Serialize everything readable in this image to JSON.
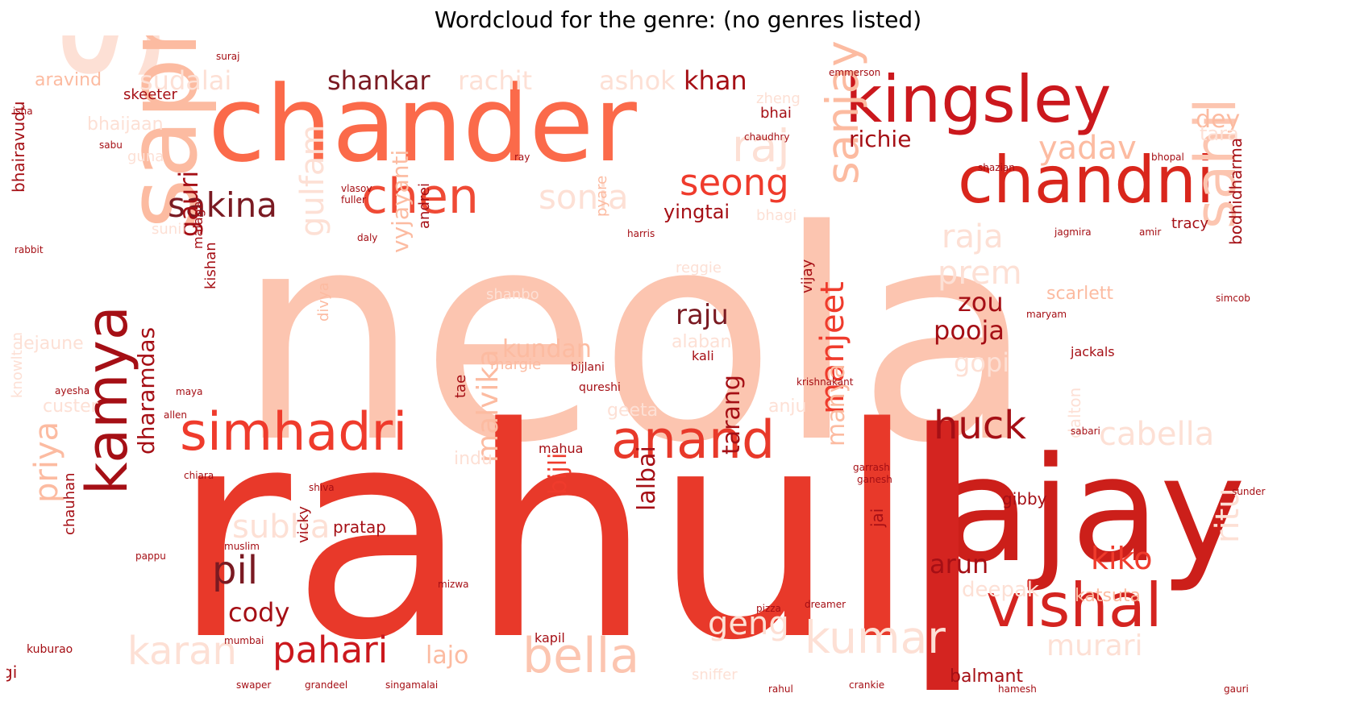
{
  "title": "Wordcloud for the genre: (no genres listed)",
  "colors": {
    "palette": [
      "#fcbba1",
      "#fc9272",
      "#fb6a4a",
      "#ef3b2c",
      "#cb181d",
      "#a50f15",
      "#67000d"
    ]
  },
  "words": [
    {
      "text": "neola",
      "weight": 1.0,
      "color": "#fcc5b0"
    },
    {
      "text": "rahul",
      "weight": 0.97,
      "color": "#e8392a"
    },
    {
      "text": "ajay",
      "weight": 0.63,
      "color": "#cc1f1a"
    },
    {
      "text": "l",
      "weight": 0.65,
      "color": "#d42420"
    },
    {
      "text": "chander",
      "weight": 0.5,
      "color": "#fb6a4a"
    },
    {
      "text": "singh",
      "weight": 0.5,
      "color": "#fde0d5"
    },
    {
      "text": "sapna",
      "weight": 0.33,
      "color": "#fcbba1"
    },
    {
      "text": "kingsley",
      "weight": 0.33,
      "color": "#cb181d"
    },
    {
      "text": "chandni",
      "weight": 0.32,
      "color": "#d9261c"
    },
    {
      "text": "sahil",
      "weight": 0.26,
      "color": "#fcc5b0"
    },
    {
      "text": "vishal",
      "weight": 0.26,
      "color": "#d42420"
    },
    {
      "text": "anand",
      "weight": 0.25,
      "color": "#e8392a"
    },
    {
      "text": "simhadri",
      "weight": 0.25,
      "color": "#ef3b2c"
    },
    {
      "text": "kamya",
      "weight": 0.24,
      "color": "#a50f15"
    },
    {
      "text": "bella",
      "weight": 0.23,
      "color": "#fcc5b0"
    },
    {
      "text": "chen",
      "weight": 0.23,
      "color": "#ef4a35"
    },
    {
      "text": "sanjay",
      "weight": 0.22,
      "color": "#fcbba1"
    },
    {
      "text": "kumar",
      "weight": 0.2,
      "color": "#fde0d5"
    },
    {
      "text": "raj",
      "weight": 0.2,
      "color": "#fde0d5"
    },
    {
      "text": "sakina",
      "weight": 0.19,
      "color": "#7a1a22"
    },
    {
      "text": "seong",
      "weight": 0.18,
      "color": "#ef3b2c"
    },
    {
      "text": "sonia",
      "weight": 0.17,
      "color": "#fde0d5"
    },
    {
      "text": "karan",
      "weight": 0.18,
      "color": "#fde0d5"
    },
    {
      "text": "huck",
      "weight": 0.18,
      "color": "#a50f15"
    },
    {
      "text": "pahari",
      "weight": 0.18,
      "color": "#cb181d"
    },
    {
      "text": "gulfam",
      "weight": 0.16,
      "color": "#fde0d5"
    },
    {
      "text": "manjeet",
      "weight": 0.17,
      "color": "#ef3b2c"
    },
    {
      "text": "raja",
      "weight": 0.16,
      "color": "#fde0d5"
    },
    {
      "text": "prem",
      "weight": 0.16,
      "color": "#fde0d5"
    },
    {
      "text": "pil",
      "weight": 0.18,
      "color": "#7a1a22"
    },
    {
      "text": "priya",
      "weight": 0.16,
      "color": "#fcbba1"
    },
    {
      "text": "subha",
      "weight": 0.15,
      "color": "#fde0d5"
    },
    {
      "text": "cabella",
      "weight": 0.15,
      "color": "#fde0d5"
    },
    {
      "text": "yadav",
      "weight": 0.15,
      "color": "#fcbba1"
    },
    {
      "text": "gauri",
      "weight": 0.14,
      "color": "#a50f15"
    },
    {
      "text": "ritu",
      "weight": 0.15,
      "color": "#fde0d5"
    },
    {
      "text": "kiko",
      "weight": 0.14,
      "color": "#ef3b2c"
    },
    {
      "text": "geng",
      "weight": 0.14,
      "color": "#fde0d5"
    },
    {
      "text": "malvika",
      "weight": 0.14,
      "color": "#fcbba1"
    },
    {
      "text": "murari",
      "weight": 0.13,
      "color": "#fde0d5"
    },
    {
      "text": "sudalai",
      "weight": 0.12,
      "color": "#fde0d5"
    },
    {
      "text": "shankar",
      "weight": 0.12,
      "color": "#7a1a22"
    },
    {
      "text": "rachit",
      "weight": 0.12,
      "color": "#fde0d5"
    },
    {
      "text": "ashok",
      "weight": 0.12,
      "color": "#fde0d5"
    },
    {
      "text": "khan",
      "weight": 0.12,
      "color": "#a50f15"
    },
    {
      "text": "richie",
      "weight": 0.11,
      "color": "#a50f15"
    },
    {
      "text": "dey",
      "weight": 0.11,
      "color": "#fcbba1"
    },
    {
      "text": "tara",
      "weight": 0.09,
      "color": "#fde0d5"
    },
    {
      "text": "raju",
      "weight": 0.12,
      "color": "#7a1a22"
    },
    {
      "text": "pooja",
      "weight": 0.11,
      "color": "#a50f15"
    },
    {
      "text": "zou",
      "weight": 0.11,
      "color": "#a50f15"
    },
    {
      "text": "kundan",
      "weight": 0.11,
      "color": "#fcbba1"
    },
    {
      "text": "gopi",
      "weight": 0.11,
      "color": "#fde0d5"
    },
    {
      "text": "cody",
      "weight": 0.11,
      "color": "#a50f15"
    },
    {
      "text": "arun",
      "weight": 0.11,
      "color": "#a50f15"
    },
    {
      "text": "tarang",
      "weight": 0.11,
      "color": "#a50f15"
    },
    {
      "text": "lajo",
      "weight": 0.1,
      "color": "#fcbba1"
    },
    {
      "text": "dharamdas",
      "weight": 0.1,
      "color": "#a50f15"
    },
    {
      "text": "bijli",
      "weight": 0.1,
      "color": "#ef3b2c"
    },
    {
      "text": "lalbai",
      "weight": 0.1,
      "color": "#a50f15"
    },
    {
      "text": "vyjayanti",
      "weight": 0.1,
      "color": "#fcbba1"
    },
    {
      "text": "manya",
      "weight": 0.1,
      "color": "#fcbba1"
    },
    {
      "text": "scarlett",
      "weight": 0.08,
      "color": "#fcbba1"
    },
    {
      "text": "deepak",
      "weight": 0.09,
      "color": "#fde0d5"
    },
    {
      "text": "katsuta",
      "weight": 0.08,
      "color": "#fcbba1"
    },
    {
      "text": "bodhidharma",
      "weight": 0.08,
      "color": "#a50f15"
    },
    {
      "text": "balmant",
      "weight": 0.08,
      "color": "#a50f15"
    },
    {
      "text": "sniffer",
      "weight": 0.07,
      "color": "#fde0d5"
    },
    {
      "text": "aravind",
      "weight": 0.07,
      "color": "#fcbba1"
    },
    {
      "text": "bhaijaan",
      "weight": 0.07,
      "color": "#fde0d5"
    },
    {
      "text": "bhairavudu",
      "weight": 0.07,
      "color": "#a50f15"
    },
    {
      "text": "sunil",
      "weight": 0.06,
      "color": "#fde0d5"
    },
    {
      "text": "lejaune",
      "weight": 0.07,
      "color": "#fde0d5"
    },
    {
      "text": "custer",
      "weight": 0.07,
      "color": "#fde0d5"
    },
    {
      "text": "knowlton",
      "weight": 0.06,
      "color": "#fde0d5"
    },
    {
      "text": "chauhan",
      "weight": 0.06,
      "color": "#a50f15"
    },
    {
      "text": "kishan",
      "weight": 0.06,
      "color": "#a50f15"
    },
    {
      "text": "malaga",
      "weight": 0.05,
      "color": "#a50f15"
    },
    {
      "text": "divya",
      "weight": 0.05,
      "color": "#fcbba1"
    },
    {
      "text": "andrei",
      "weight": 0.05,
      "color": "#a50f15"
    },
    {
      "text": "tae",
      "weight": 0.05,
      "color": "#a50f15"
    },
    {
      "text": "indu",
      "weight": 0.06,
      "color": "#fde0d5"
    },
    {
      "text": "pratap",
      "weight": 0.06,
      "color": "#a50f15"
    },
    {
      "text": "vicky",
      "weight": 0.05,
      "color": "#a50f15"
    },
    {
      "text": "gibby",
      "weight": 0.05,
      "color": "#a50f15"
    },
    {
      "text": "jai",
      "weight": 0.06,
      "color": "#a50f15"
    },
    {
      "text": "dalton",
      "weight": 0.05,
      "color": "#fde0d5"
    },
    {
      "text": "vijay",
      "weight": 0.05,
      "color": "#a50f15"
    },
    {
      "text": "geeta",
      "weight": 0.06,
      "color": "#fde0d5"
    },
    {
      "text": "anju",
      "weight": 0.06,
      "color": "#fde0d5"
    },
    {
      "text": "mahua",
      "weight": 0.05,
      "color": "#a50f15"
    },
    {
      "text": "kali",
      "weight": 0.05,
      "color": "#a50f15"
    },
    {
      "text": "alaban",
      "weight": 0.05,
      "color": "#fde0d5"
    },
    {
      "text": "margie",
      "weight": 0.05,
      "color": "#fcbba1"
    },
    {
      "text": "shanbo",
      "weight": 0.05,
      "color": "#fde0d5"
    },
    {
      "text": "pyare",
      "weight": 0.05,
      "color": "#fcbba1"
    },
    {
      "text": "yingtai",
      "weight": 0.06,
      "color": "#a50f15"
    },
    {
      "text": "bhai",
      "weight": 0.05,
      "color": "#a50f15"
    },
    {
      "text": "bhagi",
      "weight": 0.05,
      "color": "#fde0d5"
    },
    {
      "text": "zheng",
      "weight": 0.05,
      "color": "#fde0d5"
    },
    {
      "text": "tracy",
      "weight": 0.05,
      "color": "#a50f15"
    },
    {
      "text": "guna",
      "weight": 0.05,
      "color": "#fde0d5"
    },
    {
      "text": "jackals",
      "weight": 0.04,
      "color": "#a50f15"
    },
    {
      "text": "reggie",
      "weight": 0.04,
      "color": "#fde0d5"
    },
    {
      "text": "kapil",
      "weight": 0.04,
      "color": "#a50f15"
    },
    {
      "text": "bijlani",
      "weight": 0.03,
      "color": "#a50f15"
    },
    {
      "text": "qureshi",
      "weight": 0.03,
      "color": "#a50f15"
    },
    {
      "text": "krishnakant",
      "weight": 0.03,
      "color": "#a50f15"
    },
    {
      "text": "chaudhry",
      "weight": 0.03,
      "color": "#a50f15"
    },
    {
      "text": "skeeter",
      "weight": 0.04,
      "color": "#a50f15"
    },
    {
      "text": "rabbit",
      "weight": 0.03,
      "color": "#a50f15"
    },
    {
      "text": "ayesha",
      "weight": 0.03,
      "color": "#a50f15"
    },
    {
      "text": "allen",
      "weight": 0.03,
      "color": "#a50f15"
    },
    {
      "text": "maya",
      "weight": 0.03,
      "color": "#a50f15"
    },
    {
      "text": "muslim",
      "weight": 0.03,
      "color": "#a50f15"
    },
    {
      "text": "mumbai",
      "weight": 0.03,
      "color": "#a50f15"
    },
    {
      "text": "kuburao",
      "weight": 0.03,
      "color": "#a50f15"
    },
    {
      "text": "gi",
      "weight": 0.05,
      "color": "#a50f15"
    },
    {
      "text": "grandeel",
      "weight": 0.03,
      "color": "#a50f15"
    },
    {
      "text": "singamalai",
      "weight": 0.03,
      "color": "#a50f15"
    },
    {
      "text": "swaper",
      "weight": 0.03,
      "color": "#a50f15"
    },
    {
      "text": "rahul",
      "weight": 0.03,
      "color": "#a50f15"
    },
    {
      "text": "pizza",
      "weight": 0.03,
      "color": "#a50f15"
    },
    {
      "text": "dreamer",
      "weight": 0.03,
      "color": "#a50f15"
    },
    {
      "text": "crankie",
      "weight": 0.03,
      "color": "#a50f15"
    },
    {
      "text": "sabari",
      "weight": 0.03,
      "color": "#a50f15"
    },
    {
      "text": "garrash",
      "weight": 0.03,
      "color": "#a50f15"
    },
    {
      "text": "ganesh",
      "weight": 0.03,
      "color": "#a50f15"
    },
    {
      "text": "chiara",
      "weight": 0.03,
      "color": "#a50f15"
    },
    {
      "text": "shiva",
      "weight": 0.03,
      "color": "#a50f15"
    },
    {
      "text": "mizwa",
      "weight": 0.03,
      "color": "#a50f15"
    },
    {
      "text": "hamesh",
      "weight": 0.03,
      "color": "#a50f15"
    },
    {
      "text": "bhopal",
      "weight": 0.03,
      "color": "#a50f15"
    },
    {
      "text": "jagmira",
      "weight": 0.03,
      "color": "#a50f15"
    },
    {
      "text": "amir",
      "weight": 0.03,
      "color": "#a50f15"
    },
    {
      "text": "harris",
      "weight": 0.03,
      "color": "#a50f15"
    },
    {
      "text": "daly",
      "weight": 0.03,
      "color": "#a50f15"
    },
    {
      "text": "fuller",
      "weight": 0.03,
      "color": "#a50f15"
    },
    {
      "text": "vlasov",
      "weight": 0.03,
      "color": "#a50f15"
    },
    {
      "text": "isha",
      "weight": 0.03,
      "color": "#a50f15"
    },
    {
      "text": "sabu",
      "weight": 0.03,
      "color": "#a50f15"
    },
    {
      "text": "ray",
      "weight": 0.03,
      "color": "#a50f15"
    },
    {
      "text": "shazian",
      "weight": 0.03,
      "color": "#a50f15"
    },
    {
      "text": "pappu",
      "weight": 0.03,
      "color": "#a50f15"
    },
    {
      "text": "simcob",
      "weight": 0.03,
      "color": "#a50f15"
    },
    {
      "text": "maryam",
      "weight": 0.03,
      "color": "#a50f15"
    },
    {
      "text": "suraj",
      "weight": 0.03,
      "color": "#a50f15"
    },
    {
      "text": "emmerson",
      "weight": 0.03,
      "color": "#a50f15"
    },
    {
      "text": "sunder",
      "weight": 0.03,
      "color": "#a50f15"
    },
    {
      "text": "gauri",
      "weight": 0.03,
      "color": "#a50f15"
    }
  ]
}
